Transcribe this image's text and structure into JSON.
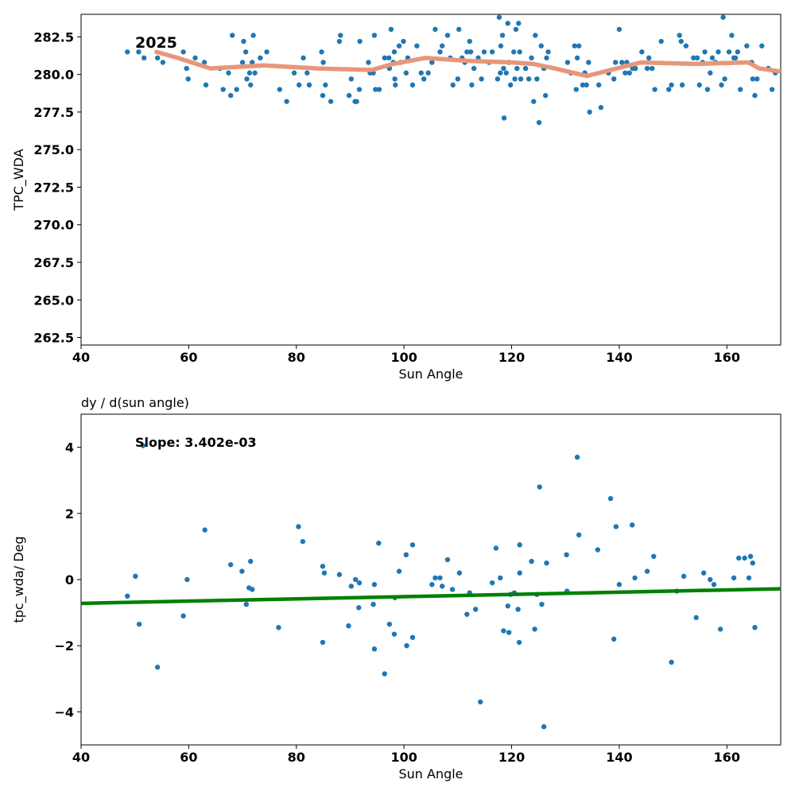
{
  "colors": {
    "points": "#1f77b4",
    "trend_line": "#e8967a",
    "fit_line": "#008000",
    "axes": "#000000",
    "background": "#ffffff"
  },
  "chart_data": [
    {
      "type": "scatter",
      "title": "",
      "xlabel": "Sun Angle",
      "ylabel": "TPC_WDA",
      "xlim": [
        40,
        170
      ],
      "ylim": [
        262,
        284
      ],
      "xticks": [
        40,
        60,
        80,
        100,
        120,
        140,
        160
      ],
      "yticks": [
        262.5,
        265.0,
        267.5,
        270.0,
        272.5,
        275.0,
        277.5,
        280.0,
        282.5
      ],
      "annotation": "2025",
      "grid": false,
      "points": [
        [
          48.6,
          281.5
        ],
        [
          50.7,
          281.5
        ],
        [
          51.7,
          281.1
        ],
        [
          54.2,
          281.1
        ],
        [
          55.2,
          280.8
        ],
        [
          59.0,
          281.5
        ],
        [
          59.6,
          280.4
        ],
        [
          59.9,
          279.7
        ],
        [
          61.2,
          281.1
        ],
        [
          62.9,
          280.8
        ],
        [
          63.2,
          279.3
        ],
        [
          65.8,
          280.4
        ],
        [
          66.4,
          279.0
        ],
        [
          67.4,
          280.1
        ],
        [
          67.8,
          278.6
        ],
        [
          68.1,
          282.6
        ],
        [
          68.9,
          279.0
        ],
        [
          70.0,
          280.8
        ],
        [
          70.2,
          282.2
        ],
        [
          70.6,
          281.5
        ],
        [
          70.8,
          279.7
        ],
        [
          71.3,
          280.1
        ],
        [
          71.5,
          279.3
        ],
        [
          71.8,
          280.8
        ],
        [
          72.0,
          282.6
        ],
        [
          72.3,
          280.1
        ],
        [
          73.3,
          281.1
        ],
        [
          74.5,
          281.5
        ],
        [
          76.9,
          279.0
        ],
        [
          78.2,
          278.2
        ],
        [
          79.6,
          280.1
        ],
        [
          80.5,
          279.3
        ],
        [
          81.3,
          281.1
        ],
        [
          82.0,
          280.1
        ],
        [
          82.4,
          279.3
        ],
        [
          84.7,
          281.5
        ],
        [
          84.9,
          278.6
        ],
        [
          85.0,
          280.8
        ],
        [
          85.4,
          279.3
        ],
        [
          86.4,
          278.2
        ],
        [
          88.0,
          282.2
        ],
        [
          88.2,
          282.6
        ],
        [
          89.8,
          278.6
        ],
        [
          90.2,
          279.7
        ],
        [
          90.9,
          278.2
        ],
        [
          91.2,
          278.2
        ],
        [
          91.7,
          279.0
        ],
        [
          91.8,
          282.2
        ],
        [
          93.4,
          280.8
        ],
        [
          93.7,
          280.1
        ],
        [
          94.3,
          280.1
        ],
        [
          94.5,
          282.6
        ],
        [
          94.7,
          279.0
        ],
        [
          95.4,
          279.0
        ],
        [
          96.4,
          281.1
        ],
        [
          97.2,
          281.1
        ],
        [
          97.3,
          280.4
        ],
        [
          97.6,
          283.0
        ],
        [
          98.0,
          280.8
        ],
        [
          98.2,
          281.5
        ],
        [
          98.3,
          279.7
        ],
        [
          98.4,
          279.3
        ],
        [
          99.1,
          281.9
        ],
        [
          99.4,
          280.8
        ],
        [
          99.9,
          282.2
        ],
        [
          100.4,
          280.1
        ],
        [
          100.7,
          281.1
        ],
        [
          101.6,
          279.3
        ],
        [
          102.4,
          281.9
        ],
        [
          103.2,
          280.1
        ],
        [
          103.7,
          279.7
        ],
        [
          104.5,
          280.1
        ],
        [
          105.2,
          280.8
        ],
        [
          105.8,
          283.0
        ],
        [
          106.7,
          281.5
        ],
        [
          107.1,
          281.9
        ],
        [
          108.1,
          282.6
        ],
        [
          108.6,
          281.1
        ],
        [
          109.1,
          279.3
        ],
        [
          110.0,
          279.7
        ],
        [
          110.2,
          283.0
        ],
        [
          110.8,
          281.1
        ],
        [
          111.3,
          280.8
        ],
        [
          111.7,
          281.5
        ],
        [
          112.2,
          282.2
        ],
        [
          112.4,
          281.5
        ],
        [
          112.6,
          279.3
        ],
        [
          113.0,
          280.4
        ],
        [
          113.8,
          281.1
        ],
        [
          114.4,
          279.7
        ],
        [
          114.9,
          281.5
        ],
        [
          115.8,
          280.8
        ],
        [
          116.4,
          281.5
        ],
        [
          117.4,
          279.7
        ],
        [
          117.7,
          283.8
        ],
        [
          117.9,
          280.1
        ],
        [
          118.0,
          281.9
        ],
        [
          118.3,
          282.6
        ],
        [
          118.5,
          280.4
        ],
        [
          118.6,
          277.1
        ],
        [
          119.0,
          280.1
        ],
        [
          119.3,
          283.4
        ],
        [
          119.5,
          280.8
        ],
        [
          119.8,
          279.3
        ],
        [
          120.4,
          281.5
        ],
        [
          120.6,
          279.7
        ],
        [
          120.8,
          283.0
        ],
        [
          121.0,
          280.4
        ],
        [
          121.3,
          283.4
        ],
        [
          121.5,
          281.5
        ],
        [
          121.7,
          279.7
        ],
        [
          122.6,
          280.4
        ],
        [
          123.2,
          279.7
        ],
        [
          123.7,
          281.1
        ],
        [
          124.1,
          278.2
        ],
        [
          124.4,
          282.6
        ],
        [
          124.7,
          279.7
        ],
        [
          125.1,
          276.8
        ],
        [
          125.5,
          281.9
        ],
        [
          126.0,
          280.4
        ],
        [
          126.3,
          278.6
        ],
        [
          126.5,
          281.1
        ],
        [
          126.8,
          281.5
        ],
        [
          130.4,
          280.8
        ],
        [
          131.0,
          280.1
        ],
        [
          131.7,
          281.9
        ],
        [
          132.0,
          279.0
        ],
        [
          132.2,
          281.1
        ],
        [
          132.5,
          281.9
        ],
        [
          133.2,
          279.3
        ],
        [
          133.6,
          280.1
        ],
        [
          133.9,
          279.3
        ],
        [
          134.3,
          280.8
        ],
        [
          134.5,
          277.5
        ],
        [
          136.2,
          279.3
        ],
        [
          136.6,
          277.8
        ],
        [
          138.0,
          280.1
        ],
        [
          139.0,
          279.7
        ],
        [
          139.3,
          280.8
        ],
        [
          140.0,
          283.0
        ],
        [
          140.5,
          280.8
        ],
        [
          141.1,
          280.1
        ],
        [
          141.4,
          280.8
        ],
        [
          141.9,
          280.1
        ],
        [
          142.5,
          280.4
        ],
        [
          143.0,
          280.4
        ],
        [
          144.2,
          281.5
        ],
        [
          145.2,
          280.4
        ],
        [
          145.5,
          281.1
        ],
        [
          146.1,
          280.4
        ],
        [
          146.6,
          279.0
        ],
        [
          147.8,
          282.2
        ],
        [
          149.2,
          279.0
        ],
        [
          149.7,
          279.3
        ],
        [
          151.2,
          282.6
        ],
        [
          151.5,
          282.2
        ],
        [
          151.7,
          279.3
        ],
        [
          152.4,
          281.9
        ],
        [
          153.8,
          281.1
        ],
        [
          154.5,
          281.1
        ],
        [
          154.9,
          279.3
        ],
        [
          155.5,
          280.8
        ],
        [
          155.9,
          281.5
        ],
        [
          156.4,
          279.0
        ],
        [
          156.9,
          280.1
        ],
        [
          157.3,
          281.1
        ],
        [
          157.9,
          280.8
        ],
        [
          158.4,
          281.5
        ],
        [
          159.0,
          279.3
        ],
        [
          159.3,
          283.8
        ],
        [
          159.6,
          279.7
        ],
        [
          160.4,
          281.5
        ],
        [
          160.9,
          282.6
        ],
        [
          161.3,
          281.1
        ],
        [
          161.6,
          281.1
        ],
        [
          162.0,
          281.5
        ],
        [
          162.5,
          279.0
        ],
        [
          163.7,
          281.9
        ],
        [
          164.6,
          280.8
        ],
        [
          164.8,
          279.7
        ],
        [
          165.2,
          278.6
        ],
        [
          165.6,
          279.7
        ],
        [
          166.5,
          281.9
        ],
        [
          167.7,
          280.4
        ],
        [
          168.4,
          279.0
        ],
        [
          169.0,
          280.1
        ]
      ],
      "trend": [
        [
          54,
          281.5
        ],
        [
          58,
          281.1
        ],
        [
          64,
          280.4
        ],
        [
          74,
          280.6
        ],
        [
          84,
          280.4
        ],
        [
          94,
          280.3
        ],
        [
          98,
          280.7
        ],
        [
          104,
          281.1
        ],
        [
          112,
          280.9
        ],
        [
          120,
          280.8
        ],
        [
          124,
          280.7
        ],
        [
          128,
          280.4
        ],
        [
          134,
          279.9
        ],
        [
          144,
          280.8
        ],
        [
          154,
          280.7
        ],
        [
          164,
          280.8
        ],
        [
          166,
          280.4
        ],
        [
          170,
          280.2
        ]
      ]
    },
    {
      "type": "scatter",
      "title": "dy / d(sun angle)",
      "xlabel": "Sun Angle",
      "ylabel": "tpc_wda/ Deg",
      "xlim": [
        40,
        170
      ],
      "ylim": [
        -5,
        5
      ],
      "xticks": [
        40,
        60,
        80,
        100,
        120,
        140,
        160
      ],
      "yticks": [
        -4,
        -2,
        0,
        2,
        4
      ],
      "yticklabels": [
        "−4",
        "−2",
        "0",
        "2",
        "4"
      ],
      "annotation": "Slope: 3.402e-03",
      "grid": false,
      "points": [
        [
          48.6,
          -0.5
        ],
        [
          50.1,
          0.1
        ],
        [
          50.8,
          -1.35
        ],
        [
          51.5,
          4.05
        ],
        [
          54.2,
          -2.65
        ],
        [
          59.0,
          -1.1
        ],
        [
          59.7,
          0.0
        ],
        [
          63.0,
          1.5
        ],
        [
          67.8,
          0.45
        ],
        [
          69.9,
          0.25
        ],
        [
          70.7,
          -0.75
        ],
        [
          71.2,
          -0.25
        ],
        [
          71.5,
          0.55
        ],
        [
          71.8,
          -0.3
        ],
        [
          76.7,
          -1.45
        ],
        [
          80.4,
          1.6
        ],
        [
          81.2,
          1.15
        ],
        [
          84.9,
          0.4
        ],
        [
          84.9,
          -1.9
        ],
        [
          85.2,
          0.2
        ],
        [
          88.0,
          0.15
        ],
        [
          89.7,
          -1.4
        ],
        [
          90.2,
          -0.2
        ],
        [
          91.0,
          0.0
        ],
        [
          91.6,
          -0.85
        ],
        [
          91.7,
          -0.1
        ],
        [
          94.3,
          -0.75
        ],
        [
          94.5,
          -0.15
        ],
        [
          94.5,
          -2.1
        ],
        [
          95.3,
          1.1
        ],
        [
          96.4,
          -2.85
        ],
        [
          97.3,
          -1.35
        ],
        [
          98.2,
          -1.65
        ],
        [
          98.3,
          -0.55
        ],
        [
          99.1,
          0.25
        ],
        [
          100.4,
          0.75
        ],
        [
          100.5,
          -2.0
        ],
        [
          101.6,
          1.05
        ],
        [
          101.6,
          -1.75
        ],
        [
          105.2,
          -0.15
        ],
        [
          105.8,
          0.05
        ],
        [
          106.7,
          0.05
        ],
        [
          107.1,
          -0.2
        ],
        [
          108.1,
          0.6
        ],
        [
          109.0,
          -0.3
        ],
        [
          110.3,
          0.2
        ],
        [
          111.7,
          -1.05
        ],
        [
          112.2,
          -0.4
        ],
        [
          113.3,
          -0.9
        ],
        [
          114.2,
          -3.7
        ],
        [
          116.4,
          -0.1
        ],
        [
          117.1,
          0.95
        ],
        [
          117.9,
          0.05
        ],
        [
          118.5,
          -1.55
        ],
        [
          119.3,
          -0.8
        ],
        [
          119.5,
          -1.6
        ],
        [
          119.8,
          -0.45
        ],
        [
          120.5,
          -0.4
        ],
        [
          121.2,
          -0.9
        ],
        [
          121.4,
          -1.9
        ],
        [
          121.5,
          0.2
        ],
        [
          121.5,
          1.05
        ],
        [
          123.7,
          0.55
        ],
        [
          124.3,
          -1.5
        ],
        [
          124.7,
          -0.45
        ],
        [
          125.2,
          2.8
        ],
        [
          125.6,
          -0.75
        ],
        [
          126.0,
          -4.45
        ],
        [
          126.5,
          0.5
        ],
        [
          130.2,
          0.75
        ],
        [
          130.3,
          -0.35
        ],
        [
          132.2,
          3.7
        ],
        [
          132.5,
          1.35
        ],
        [
          136.0,
          0.9
        ],
        [
          138.4,
          2.45
        ],
        [
          139.0,
          -1.8
        ],
        [
          139.4,
          1.6
        ],
        [
          140.0,
          -0.15
        ],
        [
          142.4,
          1.65
        ],
        [
          142.9,
          0.05
        ],
        [
          145.2,
          0.25
        ],
        [
          146.4,
          0.7
        ],
        [
          149.7,
          -2.5
        ],
        [
          150.7,
          -0.35
        ],
        [
          152.0,
          0.1
        ],
        [
          154.3,
          -1.15
        ],
        [
          155.7,
          0.2
        ],
        [
          156.9,
          0.0
        ],
        [
          157.6,
          -0.15
        ],
        [
          158.8,
          -1.5
        ],
        [
          161.3,
          0.05
        ],
        [
          162.2,
          0.65
        ],
        [
          163.3,
          0.65
        ],
        [
          164.1,
          0.05
        ],
        [
          164.4,
          0.7
        ],
        [
          164.8,
          0.5
        ],
        [
          165.2,
          -1.45
        ]
      ],
      "fit_line": [
        [
          40,
          -0.72
        ],
        [
          170,
          -0.28
        ]
      ]
    }
  ]
}
